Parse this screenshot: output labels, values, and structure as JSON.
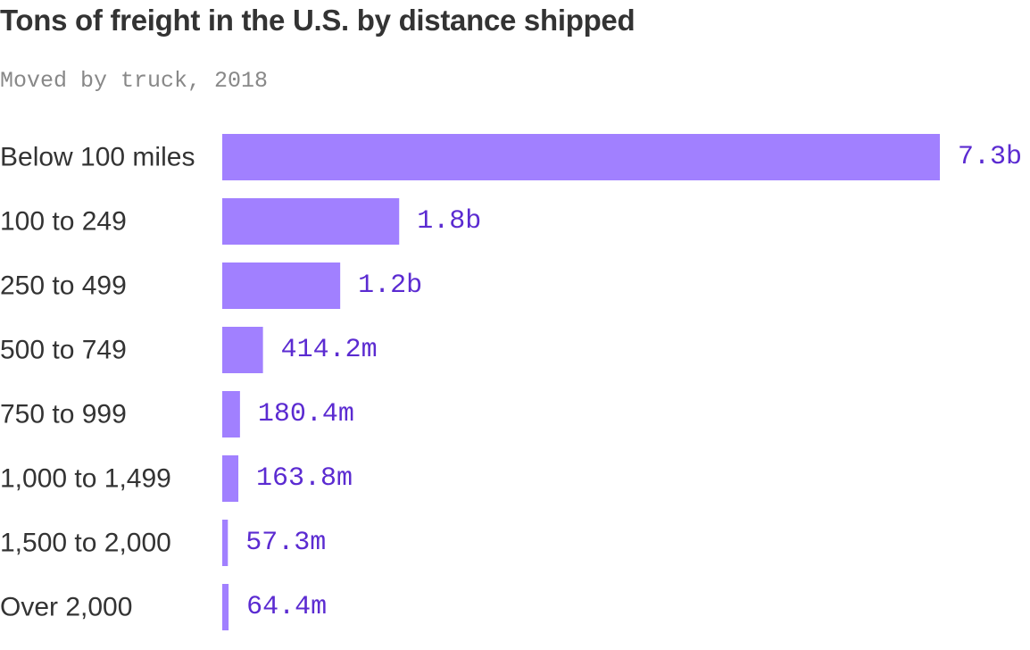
{
  "title": "Tons of freight in the U.S. by distance shipped",
  "subtitle": "Moved by truck, 2018",
  "colors": {
    "bar": "#a180ff",
    "value_label": "#5b2bd1",
    "category_label": "#333333",
    "title": "#333333",
    "subtitle": "#888888"
  },
  "chart_data": {
    "type": "bar",
    "orientation": "horizontal",
    "title": "Tons of freight in the U.S. by distance shipped",
    "subtitle": "Moved by truck, 2018",
    "categories": [
      "Below 100 miles",
      "100 to 249",
      "250 to 499",
      "500 to 749",
      "750 to 999",
      "1,000 to 1,499",
      "1,500 to 2,000",
      "Over 2,000"
    ],
    "values": [
      7300000000,
      1800000000,
      1200000000,
      414200000,
      180400000,
      163800000,
      57300000,
      64400000
    ],
    "value_labels": [
      "7.3b",
      "1.8b",
      "1.2b",
      "414.2m",
      "180.4m",
      "163.8m",
      "57.3m",
      "64.4m"
    ],
    "xlim": [
      0,
      7300000000
    ],
    "grid": false,
    "legend": "none"
  }
}
